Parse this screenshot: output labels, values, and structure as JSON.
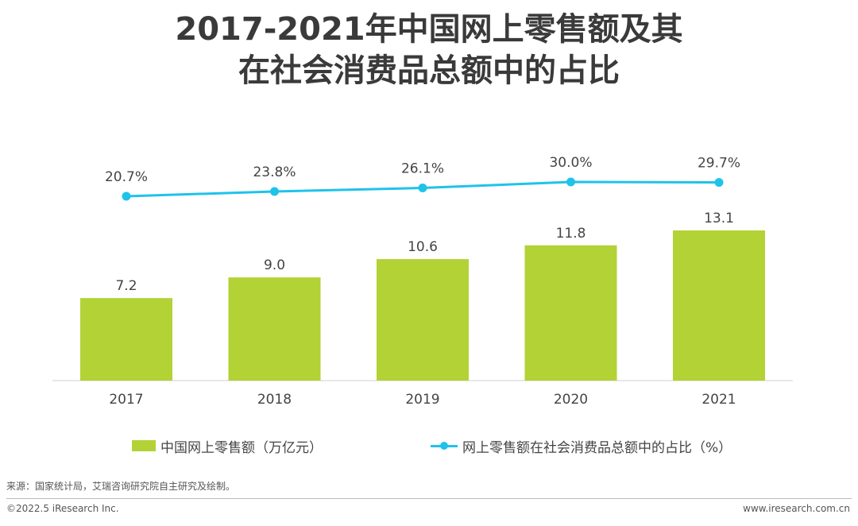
{
  "chart_data": {
    "type": "bar+line",
    "title_line1": "2017-2021年中国网上零售额及其",
    "title_line2": "在社会消费品总额中的占比",
    "categories": [
      "2017",
      "2018",
      "2019",
      "2020",
      "2021"
    ],
    "series": [
      {
        "name": "中国网上零售额（万亿元）",
        "type": "bar",
        "color": "#b2d235",
        "values": [
          7.2,
          9.0,
          10.6,
          11.8,
          13.1
        ],
        "labels": [
          "7.2",
          "9.0",
          "10.6",
          "11.8",
          "13.1"
        ]
      },
      {
        "name": "网上零售额在社会消费品总额中的占比（%）",
        "type": "line",
        "color": "#1fc3ea",
        "values": [
          20.7,
          23.8,
          26.1,
          30.0,
          29.7
        ],
        "labels": [
          "20.7%",
          "23.8%",
          "26.1%",
          "30.0%",
          "29.7%"
        ]
      }
    ],
    "bar_ylim": [
      0,
      13.1
    ],
    "line_ylim": [
      0,
      30.0
    ],
    "grid": false,
    "legend_position": "bottom"
  },
  "footer": {
    "source": "来源：国家统计局，艾瑞咨询研究院自主研究及绘制。",
    "copyright": "©2022.5 iResearch Inc.",
    "website": "www.iresearch.com.cn"
  }
}
